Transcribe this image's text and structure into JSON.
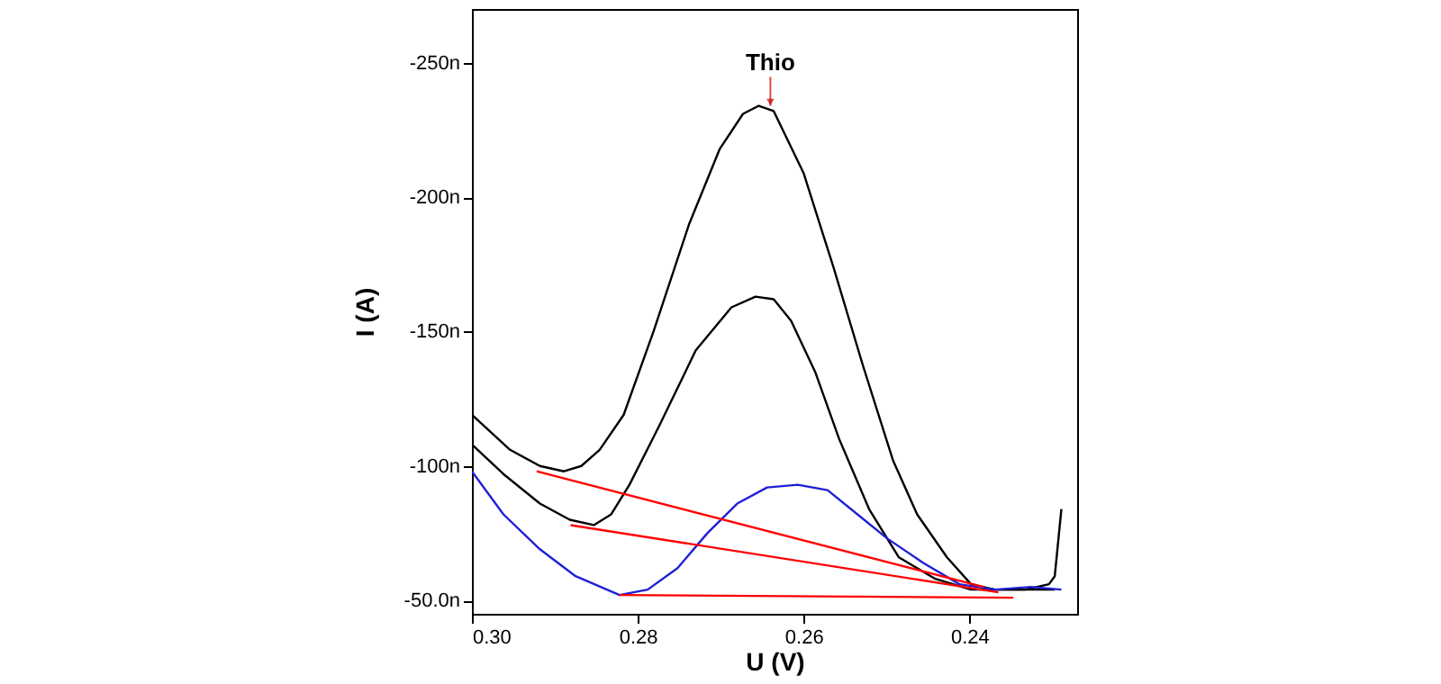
{
  "chart_data": {
    "type": "line",
    "xlabel": "U (V)",
    "ylabel": "I (A)",
    "annotations": [
      {
        "text": "Thio",
        "x": 0.264,
        "y": -234
      }
    ],
    "xlim": [
      0.3,
      0.227
    ],
    "ylim": [
      -45,
      -270
    ],
    "xticks": [
      {
        "value": 0.3,
        "label": "0.30"
      },
      {
        "value": 0.28,
        "label": "0.28"
      },
      {
        "value": 0.26,
        "label": "0.26"
      },
      {
        "value": 0.24,
        "label": "0.24"
      }
    ],
    "yticks": [
      {
        "value": -250,
        "label": "-250n"
      },
      {
        "value": -200,
        "label": "-200n"
      },
      {
        "value": -150,
        "label": "-150n"
      },
      {
        "value": -100,
        "label": "-100n"
      },
      {
        "value": -50,
        "label": "-50.0n"
      }
    ],
    "series": [
      {
        "color": "#000000",
        "x": [
          0.3,
          0.2954,
          0.2918,
          0.2889,
          0.2868,
          0.2846,
          0.2817,
          0.2781,
          0.2738,
          0.2701,
          0.2673,
          0.2654,
          0.2636,
          0.26,
          0.2564,
          0.2528,
          0.2492,
          0.2463,
          0.2427,
          0.2398,
          0.2369,
          0.2333,
          0.2304,
          0.2297,
          0.2289
        ],
        "values": [
          -119,
          -106,
          -100,
          -98,
          -100,
          -106,
          -119,
          -150,
          -190,
          -218,
          -231,
          -234,
          -232,
          -209,
          -174,
          -137,
          -102,
          -82,
          -66,
          -56,
          -54,
          -54,
          -56,
          -59,
          -84
        ]
      },
      {
        "color": "#000000",
        "x": [
          0.3,
          0.2962,
          0.2918,
          0.2882,
          0.2853,
          0.2832,
          0.281,
          0.2774,
          0.273,
          0.2687,
          0.2658,
          0.2636,
          0.2615,
          0.2586,
          0.2557,
          0.2521,
          0.2485,
          0.2441,
          0.2398,
          0.234,
          0.2297
        ],
        "values": [
          -108,
          -97,
          -86,
          -80,
          -78,
          -82,
          -93,
          -115,
          -143,
          -159,
          -163,
          -162,
          -154,
          -135,
          -110,
          -84,
          -66,
          -58,
          -54,
          -54,
          -54
        ]
      },
      {
        "color": "#1f1fd6",
        "x": [
          0.3,
          0.2962,
          0.2918,
          0.2875,
          0.2822,
          0.2788,
          0.2752,
          0.2716,
          0.268,
          0.2644,
          0.2607,
          0.2571,
          0.2535,
          0.2499,
          0.2456,
          0.2412,
          0.2369,
          0.2326,
          0.2289
        ],
        "values": [
          -98,
          -82,
          -69,
          -59,
          -52,
          -54,
          -62,
          -75,
          -86,
          -92,
          -93,
          -91,
          -82,
          -73,
          -64,
          -56,
          -54,
          -55,
          -54
        ]
      },
      {
        "color": "#ff0000",
        "x": [
          0.2922,
          0.2383
        ],
        "values": [
          -98,
          -55
        ]
      },
      {
        "color": "#ff0000",
        "x": [
          0.2881,
          0.2365
        ],
        "values": [
          -78,
          -53
        ]
      },
      {
        "color": "#ff0000",
        "x": [
          0.2822,
          0.2347
        ],
        "values": [
          -52,
          -51
        ]
      }
    ]
  }
}
